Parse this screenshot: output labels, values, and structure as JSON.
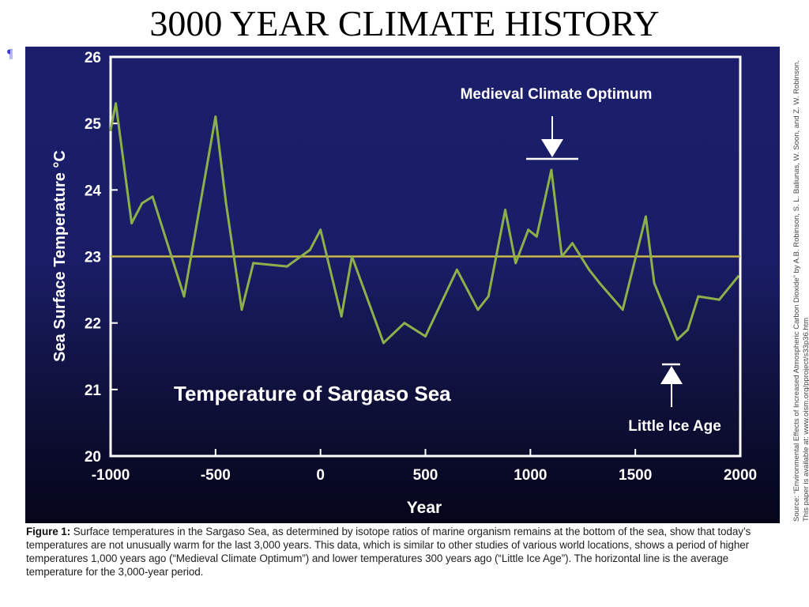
{
  "slide": {
    "title": "3000 YEAR CLIMATE HISTORY",
    "pilcrow": "¶"
  },
  "colors": {
    "panel_top": "#1b1e6b",
    "panel_bottom": "#05051a",
    "series_line": "#8db04a",
    "average_line": "#c8b84a",
    "text": "#ffffff"
  },
  "chart_data": {
    "type": "line",
    "title": "Temperature of Sargaso Sea",
    "xlabel": "Year",
    "ylabel": "Sea Surface Temperature °C",
    "xlim": [
      -1000,
      2000
    ],
    "ylim": [
      20,
      26
    ],
    "xticks": [
      -1000,
      -500,
      0,
      500,
      1000,
      1500,
      2000
    ],
    "yticks": [
      20,
      21,
      22,
      23,
      24,
      25,
      26
    ],
    "grid": false,
    "series": [
      {
        "x": [
          -1000,
          -975,
          -900,
          -850,
          -800,
          -650,
          -500,
          -450,
          -375,
          -320,
          -160,
          -50,
          0,
          100,
          150,
          300,
          400,
          500,
          650,
          750,
          800,
          880,
          930,
          990,
          1030,
          1100,
          1150,
          1200,
          1280,
          1330,
          1440,
          1550,
          1590,
          1700,
          1750,
          1800,
          1900,
          1990
        ],
        "values": [
          24.9,
          25.3,
          23.5,
          23.8,
          23.9,
          22.4,
          25.1,
          23.8,
          22.2,
          22.9,
          22.85,
          23.1,
          23.4,
          22.1,
          23.0,
          21.7,
          22.0,
          21.8,
          22.8,
          22.2,
          22.4,
          23.7,
          22.9,
          23.4,
          23.3,
          24.3,
          23.0,
          23.2,
          22.8,
          22.6,
          22.2,
          23.6,
          22.6,
          21.75,
          21.9,
          22.4,
          22.35,
          22.7
        ]
      }
    ],
    "average_line": 23.0,
    "annotations": [
      {
        "text": "Medieval Climate Optimum",
        "x": 1100,
        "y": 24.3,
        "direction": "down"
      },
      {
        "text": "Little Ice Age",
        "x": 1680,
        "y": 21.75,
        "direction": "up"
      }
    ]
  },
  "source_note": "Source: “Environmental Effects of Increased Atmospheric Carbon Dioxide” by A.B. Robinson, S. L. Baliunas, W. Soon, and Z. W. Robinson. This paper is available at: www.oism.org/pproject/s33p36.htm",
  "caption": {
    "label": "Figure 1:",
    "text": " Surface temperatures in the Sargaso Sea, as determined by isotope ratios of marine organism remains at the bottom of the sea, show that today’s temperatures are not unusually warm for the last 3,000 years. This data, which is similar to other studies of various world locations, shows a period of higher temperatures 1,000 years ago (“Medieval Climate Optimum”) and lower temperatures 300 years ago (“Little Ice Age”). The horizontal line is the average temperature for the 3,000-year period."
  }
}
